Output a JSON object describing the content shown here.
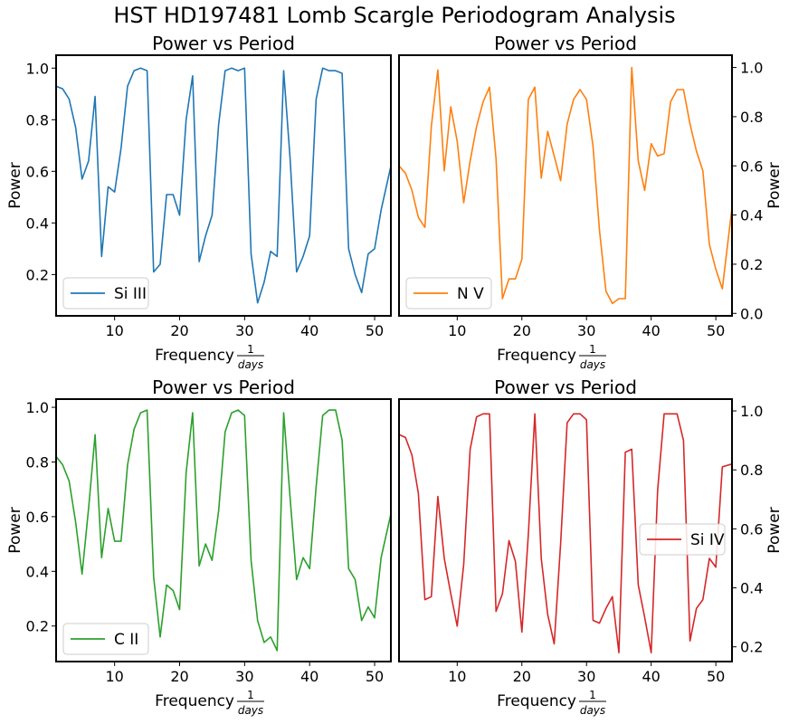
{
  "figure": {
    "suptitle": "HST HD197481 Lomb Scargle Periodogram Analysis"
  },
  "chart_data": [
    {
      "type": "line",
      "title": "Power vs Period",
      "xlabel": "Frequency",
      "xlabel_frac_num": "1",
      "xlabel_frac_den": "days",
      "ylabel": "Power",
      "xlim": [
        1,
        52.5
      ],
      "ylim": [
        0.04,
        1.05
      ],
      "xticks": [
        10,
        20,
        30,
        40,
        50
      ],
      "yticks": [
        0.2,
        0.4,
        0.6,
        0.8,
        1.0
      ],
      "ytick_labels": [
        "0.2",
        "0.4",
        "0.6",
        "0.8",
        "1.0"
      ],
      "yaxis_side": "left",
      "legend_position": "lower left",
      "color": "#1f77b4",
      "series": [
        {
          "name": "Si III",
          "x": [
            1,
            2,
            3,
            4,
            5,
            6,
            7,
            8,
            9,
            10,
            11,
            12,
            13,
            14,
            15,
            16,
            17,
            18,
            19,
            20,
            21,
            22,
            23,
            24,
            25,
            26,
            27,
            28,
            29,
            30,
            31,
            32,
            33,
            34,
            35,
            36,
            37,
            38,
            39,
            40,
            41,
            42,
            43,
            44,
            45,
            46,
            47,
            48,
            49,
            50,
            51,
            52.5
          ],
          "y": [
            0.93,
            0.92,
            0.88,
            0.77,
            0.57,
            0.64,
            0.89,
            0.27,
            0.54,
            0.52,
            0.69,
            0.93,
            0.99,
            1.0,
            0.99,
            0.21,
            0.24,
            0.51,
            0.51,
            0.43,
            0.8,
            0.97,
            0.25,
            0.35,
            0.43,
            0.78,
            0.99,
            1.0,
            0.99,
            1.0,
            0.28,
            0.09,
            0.17,
            0.29,
            0.27,
            0.99,
            0.65,
            0.21,
            0.27,
            0.35,
            0.88,
            1.0,
            0.99,
            0.99,
            0.98,
            0.3,
            0.2,
            0.13,
            0.28,
            0.3,
            0.45,
            0.62
          ]
        }
      ]
    },
    {
      "type": "line",
      "title": "Power vs Period",
      "xlabel": "Frequency",
      "xlabel_frac_num": "1",
      "xlabel_frac_den": "days",
      "ylabel": "Power",
      "xlim": [
        1,
        52.5
      ],
      "ylim": [
        -0.01,
        1.05
      ],
      "xticks": [
        10,
        20,
        30,
        40,
        50
      ],
      "yticks": [
        0.0,
        0.2,
        0.4,
        0.6,
        0.8,
        1.0
      ],
      "ytick_labels": [
        "0.0",
        "0.2",
        "0.4",
        "0.6",
        "0.8",
        "1.0"
      ],
      "yaxis_side": "right",
      "legend_position": "lower left",
      "color": "#ff7f0e",
      "series": [
        {
          "name": "N V",
          "x": [
            1,
            2,
            3,
            4,
            5,
            6,
            7,
            8,
            9,
            10,
            11,
            12,
            13,
            14,
            15,
            16,
            17,
            18,
            19,
            20,
            21,
            22,
            23,
            24,
            25,
            26,
            27,
            28,
            29,
            30,
            31,
            32,
            33,
            34,
            35,
            36,
            37,
            38,
            39,
            40,
            41,
            42,
            43,
            44,
            45,
            46,
            47,
            48,
            49,
            50,
            51,
            52.5
          ],
          "y": [
            0.6,
            0.57,
            0.5,
            0.39,
            0.35,
            0.76,
            0.99,
            0.58,
            0.84,
            0.7,
            0.45,
            0.62,
            0.76,
            0.86,
            0.92,
            0.63,
            0.06,
            0.14,
            0.14,
            0.22,
            0.87,
            0.92,
            0.55,
            0.74,
            0.64,
            0.54,
            0.77,
            0.87,
            0.91,
            0.87,
            0.68,
            0.34,
            0.09,
            0.04,
            0.06,
            0.06,
            1.0,
            0.62,
            0.5,
            0.69,
            0.64,
            0.65,
            0.86,
            0.91,
            0.91,
            0.77,
            0.66,
            0.58,
            0.28,
            0.18,
            0.1,
            0.43
          ]
        }
      ]
    },
    {
      "type": "line",
      "title": "Power vs Period",
      "xlabel": "Frequency",
      "xlabel_frac_num": "1",
      "xlabel_frac_den": "days",
      "ylabel": "Power",
      "xlim": [
        1,
        52.5
      ],
      "ylim": [
        0.07,
        1.03
      ],
      "xticks": [
        10,
        20,
        30,
        40,
        50
      ],
      "yticks": [
        0.2,
        0.4,
        0.6,
        0.8,
        1.0
      ],
      "ytick_labels": [
        "0.2",
        "0.4",
        "0.6",
        "0.8",
        "1.0"
      ],
      "yaxis_side": "left",
      "legend_position": "lower left",
      "color": "#2ca02c",
      "series": [
        {
          "name": "C II",
          "x": [
            1,
            2,
            3,
            4,
            5,
            6,
            7,
            8,
            9,
            10,
            11,
            12,
            13,
            14,
            15,
            16,
            17,
            18,
            19,
            20,
            21,
            22,
            23,
            24,
            25,
            26,
            27,
            28,
            29,
            30,
            31,
            32,
            33,
            34,
            35,
            36,
            37,
            38,
            39,
            40,
            41,
            42,
            43,
            44,
            45,
            46,
            47,
            48,
            49,
            50,
            51,
            52.5
          ],
          "y": [
            0.82,
            0.79,
            0.73,
            0.58,
            0.39,
            0.63,
            0.9,
            0.45,
            0.63,
            0.51,
            0.51,
            0.79,
            0.92,
            0.98,
            0.99,
            0.38,
            0.16,
            0.35,
            0.33,
            0.26,
            0.76,
            0.98,
            0.42,
            0.5,
            0.44,
            0.62,
            0.91,
            0.98,
            0.99,
            0.97,
            0.44,
            0.22,
            0.14,
            0.16,
            0.11,
            0.98,
            0.67,
            0.37,
            0.45,
            0.41,
            0.71,
            0.97,
            0.99,
            0.99,
            0.88,
            0.41,
            0.37,
            0.22,
            0.27,
            0.23,
            0.45,
            0.61
          ]
        }
      ]
    },
    {
      "type": "line",
      "title": "Power vs Period",
      "xlabel": "Frequency",
      "xlabel_frac_num": "1",
      "xlabel_frac_den": "days",
      "ylabel": "Power",
      "xlim": [
        1,
        52.5
      ],
      "ylim": [
        0.15,
        1.04
      ],
      "xticks": [
        10,
        20,
        30,
        40,
        50
      ],
      "yticks": [
        0.2,
        0.4,
        0.6,
        0.8,
        1.0
      ],
      "ytick_labels": [
        "0.2",
        "0.4",
        "0.6",
        "0.8",
        "1.0"
      ],
      "yaxis_side": "right",
      "legend_position": "center right",
      "color": "#d62728",
      "series": [
        {
          "name": "Si IV",
          "x": [
            1,
            2,
            3,
            4,
            5,
            6,
            7,
            8,
            9,
            10,
            11,
            12,
            13,
            14,
            15,
            16,
            17,
            18,
            19,
            20,
            21,
            22,
            23,
            24,
            25,
            26,
            27,
            28,
            29,
            30,
            31,
            32,
            33,
            34,
            35,
            36,
            37,
            38,
            39,
            40,
            41,
            42,
            43,
            44,
            45,
            46,
            47,
            48,
            49,
            50,
            51,
            52.5
          ],
          "y": [
            0.92,
            0.91,
            0.85,
            0.72,
            0.36,
            0.37,
            0.71,
            0.5,
            0.38,
            0.27,
            0.48,
            0.87,
            0.98,
            0.99,
            0.99,
            0.32,
            0.38,
            0.56,
            0.49,
            0.25,
            0.58,
            0.99,
            0.5,
            0.31,
            0.21,
            0.55,
            0.96,
            0.99,
            0.99,
            0.97,
            0.29,
            0.28,
            0.33,
            0.37,
            0.18,
            0.86,
            0.87,
            0.41,
            0.3,
            0.18,
            0.73,
            0.99,
            0.99,
            0.99,
            0.9,
            0.22,
            0.33,
            0.36,
            0.5,
            0.47,
            0.81,
            0.82
          ]
        }
      ]
    }
  ]
}
